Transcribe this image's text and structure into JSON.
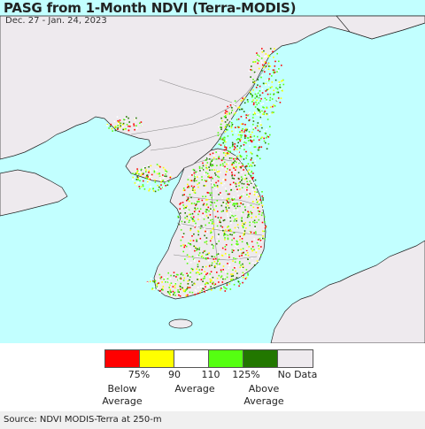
{
  "header": {
    "title": "PASG from 1-Month NDVI (Terra-MODIS)",
    "date_range": "Dec. 27 - Jan. 24, 2023"
  },
  "colors": {
    "ocean": "#c2ffff",
    "no_data_land": "#eeeaee",
    "border": "#777777",
    "coast": "#222222"
  },
  "legend": {
    "swatches": [
      {
        "name": "below-75",
        "color": "#ff0000"
      },
      {
        "name": "75-90",
        "color": "#ffff00"
      },
      {
        "name": "90-110",
        "color": "#ffffff"
      },
      {
        "name": "110-125",
        "color": "#55ff11"
      },
      {
        "name": "above-125",
        "color": "#227700"
      },
      {
        "name": "no-data",
        "color": "#eeeaee"
      }
    ],
    "ticks": [
      "75%",
      "90",
      "110",
      "125%"
    ],
    "below_label": "Below\nAverage",
    "average_label": "Average",
    "above_label": "Above\nAverage",
    "no_data_label": "No Data"
  },
  "footer": {
    "source": "Source: NDVI MODIS-Terra at 250-m"
  }
}
